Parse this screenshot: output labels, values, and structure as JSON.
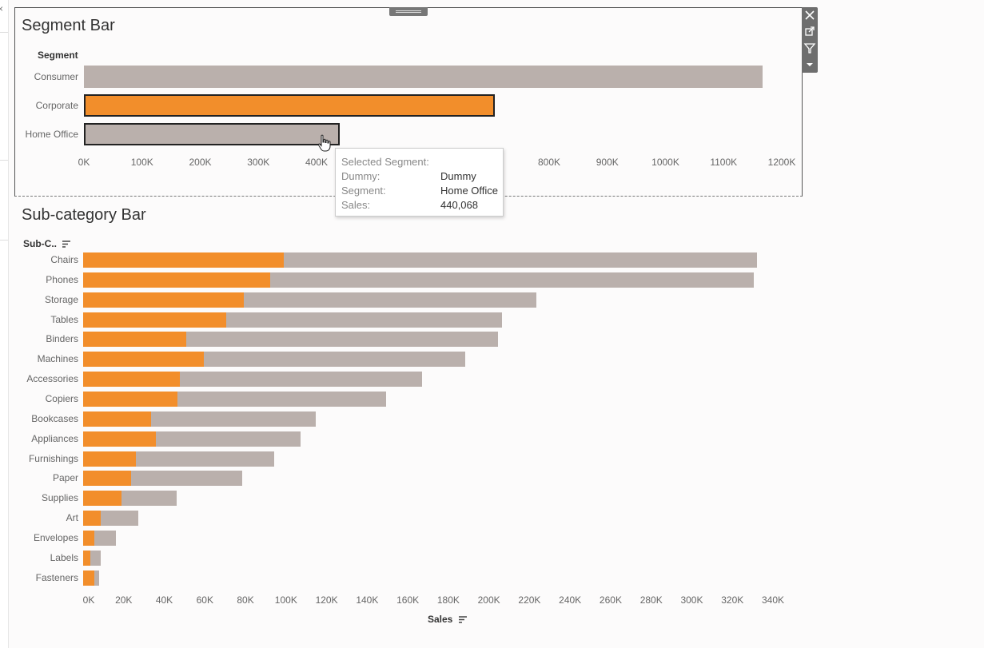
{
  "colors": {
    "orange": "#f28e2b",
    "gray": "#bab0ac",
    "outline": "#222222"
  },
  "toolbar": {
    "icons": [
      "close-icon",
      "popout-icon",
      "filter-icon",
      "dropdown-icon"
    ]
  },
  "segment_chart": {
    "title": "Segment Bar",
    "row_header": "Segment",
    "ticks": [
      "0K",
      "100K",
      "200K",
      "300K",
      "400K",
      "800K",
      "900K",
      "1000K",
      "1100K",
      "1200K"
    ],
    "tick_values": [
      0,
      100000,
      200000,
      300000,
      400000,
      800000,
      900000,
      1000000,
      1100000,
      1200000
    ]
  },
  "subcat_chart": {
    "title": "Sub-category Bar",
    "row_header": "Sub-C..",
    "x_title": "Sales",
    "ticks": [
      "0K",
      "20K",
      "40K",
      "60K",
      "80K",
      "100K",
      "120K",
      "140K",
      "160K",
      "180K",
      "200K",
      "220K",
      "240K",
      "260K",
      "280K",
      "300K",
      "320K",
      "340K"
    ],
    "tick_values": [
      0,
      20000,
      40000,
      60000,
      80000,
      100000,
      120000,
      140000,
      160000,
      180000,
      200000,
      220000,
      240000,
      260000,
      280000,
      300000,
      320000,
      340000
    ]
  },
  "tooltip": {
    "heading": "Selected Segment:",
    "rows": [
      {
        "key": "Dummy:",
        "value": "Dummy"
      },
      {
        "key": "Segment:",
        "value": "Home Office"
      },
      {
        "key": "Sales:",
        "value": "440,068"
      }
    ]
  },
  "chart_data": [
    {
      "type": "bar",
      "orientation": "horizontal",
      "title": "Segment Bar",
      "ylabel": "Segment",
      "categories": [
        "Consumer",
        "Corporate",
        "Home Office"
      ],
      "values": [
        1167000,
        706000,
        440068
      ],
      "highlight": [
        "gray",
        "orange",
        "gray"
      ],
      "selected": [
        false,
        true,
        true
      ],
      "xlim": [
        0,
        1200000
      ]
    },
    {
      "type": "bar",
      "orientation": "horizontal",
      "stacked": true,
      "title": "Sub-category Bar",
      "ylabel": "Sub-C..",
      "xlabel": "Sales",
      "categories": [
        "Chairs",
        "Phones",
        "Storage",
        "Tables",
        "Binders",
        "Machines",
        "Accessories",
        "Copiers",
        "Bookcases",
        "Appliances",
        "Furnishings",
        "Paper",
        "Supplies",
        "Art",
        "Envelopes",
        "Labels",
        "Fasteners"
      ],
      "series": [
        {
          "values": [
            99000,
            92000,
            79000,
            70500,
            51000,
            59500,
            47500,
            46500,
            33500,
            36000,
            26000,
            23500,
            19000,
            8500,
            5500,
            3500,
            5500
          ]
        },
        {
          "values": [
            233000,
            238500,
            144500,
            136000,
            153500,
            129000,
            119500,
            103000,
            81000,
            71000,
            68000,
            55000,
            27000,
            18500,
            10500,
            5000,
            2500
          ]
        }
      ],
      "totals": [
        332000,
        330500,
        223500,
        206500,
        204500,
        188500,
        167000,
        149500,
        114500,
        107000,
        94000,
        78500,
        46000,
        27000,
        16000,
        8500,
        8000
      ],
      "xlim": [
        0,
        340000
      ]
    }
  ]
}
